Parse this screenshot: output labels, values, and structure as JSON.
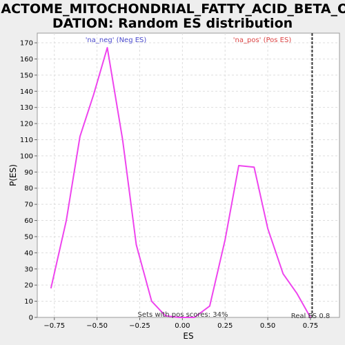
{
  "chart_data": {
    "type": "line",
    "title_lines": [
      "REACTOME_MITOCHONDRIAL_FATTY_ACID_BETA_OXI",
      "DATION: Random ES distribution"
    ],
    "xlabel": "ES",
    "ylabel": "P(ES)",
    "xlim": [
      -0.85,
      0.92
    ],
    "ylim": [
      0,
      176
    ],
    "xticks": [
      -0.75,
      -0.5,
      -0.25,
      0.0,
      0.25,
      0.5,
      0.75
    ],
    "xtick_labels": [
      "−0.75",
      "−0.50",
      "−0.25",
      "0.00",
      "0.25",
      "0.50",
      "0.75"
    ],
    "yticks": [
      0,
      10,
      20,
      30,
      40,
      50,
      60,
      70,
      80,
      90,
      100,
      110,
      120,
      130,
      140,
      150,
      160,
      170
    ],
    "ytick_labels": [
      "0",
      "10",
      "20",
      "30",
      "40",
      "50",
      "60",
      "70",
      "80",
      "90",
      "100",
      "110",
      "120",
      "130",
      "140",
      "150",
      "160",
      "170"
    ],
    "grid": true,
    "series": [
      {
        "color": "#ee44ee",
        "x": [
          -0.77,
          -0.68,
          -0.6,
          -0.52,
          -0.44,
          -0.35,
          -0.27,
          -0.18,
          -0.1,
          -0.02,
          0.07,
          0.16,
          0.25,
          0.33,
          0.42,
          0.5,
          0.59,
          0.67,
          0.75
        ],
        "y": [
          18,
          60,
          112,
          138,
          167,
          110,
          45,
          10,
          1,
          0,
          0,
          7,
          48,
          94,
          93,
          55,
          27,
          15,
          0
        ]
      }
    ],
    "vline": {
      "x": 0.76,
      "color": "#333333",
      "dashed": true
    },
    "annotations": {
      "neg_label": "'na_neg' (Neg ES)",
      "pos_label": "'na_pos' (Pos ES)",
      "sets_label": "Sets with pos scores: 34%",
      "real_label": "Real ES 0.8"
    },
    "colors": {
      "neg": "#4a4acc",
      "pos": "#dd4444",
      "curve": "#ee44ee"
    }
  }
}
